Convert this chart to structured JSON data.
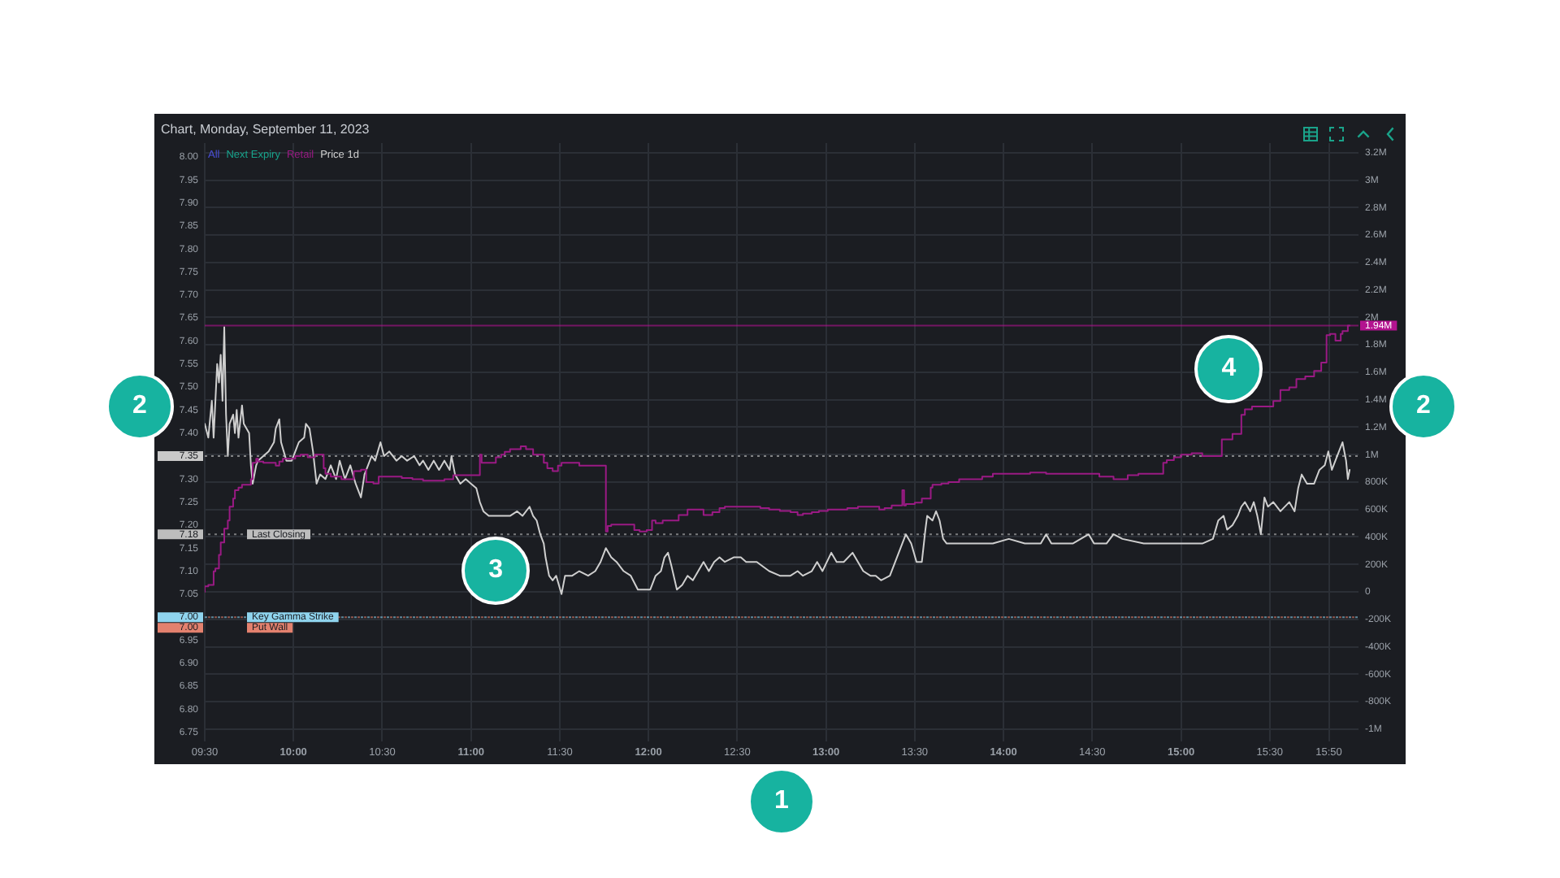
{
  "chart_data": {
    "type": "line",
    "title": "Chart, Monday, September 11, 2023",
    "series": [
      {
        "name": "All",
        "color": "#4a4fd8"
      },
      {
        "name": "Next Expiry",
        "color": "#17a38b"
      },
      {
        "name": "Retail",
        "type": "step",
        "axis": "y2",
        "color": "#9a1a84",
        "x": [
          9.5,
          9.52,
          9.55,
          9.56,
          9.58,
          9.59,
          9.61,
          9.63,
          9.64,
          9.66,
          9.67,
          9.69,
          9.71,
          9.73,
          9.76,
          9.77,
          9.79,
          9.8,
          9.83,
          9.86,
          9.9,
          9.92,
          9.94,
          9.97,
          10.01,
          10.04,
          10.08,
          10.12,
          10.14,
          10.17,
          10.18,
          10.21,
          10.27,
          10.34,
          10.38,
          10.41,
          10.45,
          10.48,
          10.55,
          10.61,
          10.67,
          10.73,
          10.85,
          10.9,
          10.93,
          11.05,
          11.06,
          11.1,
          11.14,
          11.17,
          11.19,
          11.22,
          11.28,
          11.31,
          11.35,
          11.38,
          11.41,
          11.43,
          11.46,
          11.49,
          11.51,
          11.53,
          11.61,
          11.66,
          11.76,
          11.77,
          11.79,
          11.83,
          11.92,
          11.95,
          11.99,
          12.02,
          12.04,
          12.08,
          12.13,
          12.17,
          12.22,
          12.27,
          12.31,
          12.36,
          12.4,
          12.43,
          12.48,
          12.63,
          12.68,
          12.74,
          12.8,
          12.84,
          12.87,
          12.92,
          12.96,
          13.01,
          13.06,
          13.12,
          13.18,
          13.24,
          13.3,
          13.33,
          13.37,
          13.43,
          13.44,
          13.45,
          13.5,
          13.54,
          13.59,
          13.6,
          13.65,
          13.69,
          13.75,
          13.82,
          13.88,
          13.94,
          13.98,
          14.15,
          14.24,
          14.33,
          14.54,
          14.62,
          14.7,
          14.76,
          14.85,
          14.9,
          14.92,
          14.96,
          15,
          15.06,
          15.12,
          15.18,
          15.23,
          15.24,
          15.29,
          15.34,
          15.36,
          15.4,
          15.46,
          15.52,
          15.56,
          15.61,
          15.65,
          15.7,
          15.75,
          15.79,
          15.82,
          15.84,
          15.87,
          15.9,
          15.91,
          15.94,
          15.95
        ],
        "values": [
          0,
          40000,
          50000,
          150000,
          170000,
          270000,
          360000,
          460000,
          520000,
          620000,
          680000,
          740000,
          760000,
          780000,
          780000,
          820000,
          940000,
          970000,
          950000,
          940000,
          940000,
          920000,
          950000,
          970000,
          970000,
          990000,
          1000000,
          980000,
          1000000,
          1000000,
          900000,
          860000,
          840000,
          820000,
          880000,
          890000,
          800000,
          790000,
          840000,
          840000,
          830000,
          820000,
          810000,
          820000,
          850000,
          850000,
          1000000,
          940000,
          940000,
          980000,
          1000000,
          1020000,
          1040000,
          1060000,
          1040000,
          1000000,
          1000000,
          940000,
          900000,
          880000,
          920000,
          940000,
          940000,
          920000,
          920000,
          440000,
          480000,
          490000,
          490000,
          450000,
          440000,
          450000,
          520000,
          500000,
          520000,
          520000,
          560000,
          600000,
          600000,
          560000,
          580000,
          610000,
          620000,
          620000,
          610000,
          600000,
          590000,
          580000,
          560000,
          570000,
          580000,
          590000,
          600000,
          600000,
          610000,
          620000,
          620000,
          600000,
          610000,
          630000,
          740000,
          630000,
          640000,
          650000,
          680000,
          760000,
          780000,
          790000,
          800000,
          820000,
          820000,
          840000,
          860000,
          860000,
          870000,
          860000,
          860000,
          840000,
          820000,
          850000,
          860000,
          860000,
          940000,
          960000,
          980000,
          1000000,
          1010000,
          990000,
          990000,
          1110000,
          1110000,
          1150000,
          1290000,
          1330000,
          1350000,
          1350000,
          1390000,
          1470000,
          1490000,
          1550000,
          1570000,
          1610000,
          1670000,
          1870000,
          1880000,
          1830000,
          1880000,
          1900000,
          1940000
        ]
      },
      {
        "name": "Price 1d",
        "color": "#cfcfcf",
        "x": [
          9.5,
          9.52,
          9.53,
          9.54,
          9.55,
          9.57,
          9.58,
          9.59,
          9.6,
          9.61,
          9.62,
          9.63,
          9.64,
          9.66,
          9.67,
          9.68,
          9.69,
          9.71,
          9.72,
          9.75,
          9.76,
          9.77,
          9.79,
          9.8,
          9.83,
          9.86,
          9.89,
          9.9,
          9.92,
          9.93,
          9.96,
          9.99,
          10.01,
          10.03,
          10.06,
          10.07,
          10.09,
          10.11,
          10.13,
          10.15,
          10.18,
          10.21,
          10.24,
          10.26,
          10.29,
          10.32,
          10.35,
          10.38,
          10.4,
          10.42,
          10.44,
          10.46,
          10.49,
          10.51,
          10.54,
          10.58,
          10.61,
          10.64,
          10.68,
          10.71,
          10.73,
          10.76,
          10.79,
          10.82,
          10.85,
          10.88,
          10.89,
          10.91,
          10.94,
          10.97,
          11,
          11.03,
          11.05,
          11.07,
          11.1,
          11.14,
          11.17,
          11.22,
          11.26,
          11.29,
          11.33,
          11.35,
          11.37,
          11.39,
          11.41,
          11.42,
          11.44,
          11.46,
          11.48,
          11.51,
          11.53,
          11.57,
          11.61,
          11.66,
          11.7,
          11.73,
          11.76,
          11.79,
          11.82,
          11.86,
          11.9,
          11.94,
          11.98,
          12.01,
          12.04,
          12.07,
          12.09,
          12.11,
          12.13,
          12.16,
          12.19,
          12.22,
          12.25,
          12.28,
          12.31,
          12.34,
          12.37,
          12.4,
          12.43,
          12.48,
          12.52,
          12.55,
          12.61,
          12.68,
          12.74,
          12.8,
          12.84,
          12.87,
          12.92,
          12.95,
          12.98,
          13.03,
          13.06,
          13.1,
          13.15,
          13.18,
          13.21,
          13.25,
          13.28,
          13.31,
          13.36,
          13.39,
          13.42,
          13.45,
          13.48,
          13.51,
          13.54,
          13.56,
          13.57,
          13.6,
          13.62,
          13.64,
          13.66,
          13.68,
          13.75,
          13.85,
          13.94,
          14.03,
          14.12,
          14.21,
          14.24,
          14.27,
          14.39,
          14.48,
          14.51,
          14.58,
          14.62,
          14.67,
          14.79,
          14.91,
          15.03,
          15.12,
          15.18,
          15.21,
          15.24,
          15.26,
          15.29,
          15.32,
          15.34,
          15.36,
          15.39,
          15.41,
          15.43,
          15.45,
          15.47,
          15.49,
          15.52,
          15.56,
          15.61,
          15.64,
          15.66,
          15.68,
          15.71,
          15.75,
          15.78,
          15.81,
          15.83,
          15.85,
          15.88,
          15.91,
          15.93,
          15.94,
          15.95
        ],
        "values": [
          7.42,
          7.39,
          7.43,
          7.47,
          7.39,
          7.55,
          7.51,
          7.57,
          7.47,
          7.63,
          7.44,
          7.35,
          7.42,
          7.44,
          7.4,
          7.45,
          7.39,
          7.46,
          7.42,
          7.4,
          7.33,
          7.29,
          7.33,
          7.34,
          7.35,
          7.36,
          7.38,
          7.41,
          7.43,
          7.38,
          7.34,
          7.34,
          7.36,
          7.38,
          7.39,
          7.42,
          7.41,
          7.36,
          7.29,
          7.31,
          7.3,
          7.33,
          7.3,
          7.34,
          7.3,
          7.33,
          7.29,
          7.26,
          7.31,
          7.33,
          7.35,
          7.34,
          7.38,
          7.35,
          7.36,
          7.34,
          7.35,
          7.34,
          7.35,
          7.33,
          7.34,
          7.32,
          7.34,
          7.32,
          7.34,
          7.32,
          7.35,
          7.31,
          7.29,
          7.3,
          7.29,
          7.28,
          7.25,
          7.23,
          7.22,
          7.22,
          7.22,
          7.22,
          7.23,
          7.22,
          7.24,
          7.22,
          7.21,
          7.18,
          7.16,
          7.13,
          7.09,
          7.08,
          7.09,
          7.05,
          7.09,
          7.09,
          7.1,
          7.09,
          7.1,
          7.12,
          7.15,
          7.13,
          7.12,
          7.1,
          7.09,
          7.06,
          7.06,
          7.06,
          7.09,
          7.1,
          7.13,
          7.14,
          7.11,
          7.06,
          7.07,
          7.09,
          7.08,
          7.1,
          7.12,
          7.1,
          7.12,
          7.13,
          7.12,
          7.13,
          7.13,
          7.12,
          7.12,
          7.1,
          7.09,
          7.09,
          7.1,
          7.09,
          7.1,
          7.12,
          7.1,
          7.14,
          7.12,
          7.12,
          7.14,
          7.12,
          7.1,
          7.09,
          7.09,
          7.08,
          7.09,
          7.12,
          7.15,
          7.18,
          7.16,
          7.12,
          7.12,
          7.19,
          7.22,
          7.21,
          7.23,
          7.21,
          7.17,
          7.16,
          7.16,
          7.16,
          7.16,
          7.17,
          7.16,
          7.16,
          7.18,
          7.16,
          7.16,
          7.18,
          7.16,
          7.16,
          7.18,
          7.17,
          7.16,
          7.16,
          7.16,
          7.16,
          7.17,
          7.21,
          7.22,
          7.19,
          7.2,
          7.22,
          7.24,
          7.25,
          7.23,
          7.25,
          7.22,
          7.18,
          7.26,
          7.24,
          7.25,
          7.23,
          7.25,
          7.23,
          7.28,
          7.31,
          7.29,
          7.29,
          7.32,
          7.33,
          7.36,
          7.32,
          7.35,
          7.38,
          7.34,
          7.3,
          7.32
        ]
      }
    ],
    "xlim": [
      9.5,
      16
    ],
    "xticks": [
      {
        "value": 9.5,
        "label": "09:30"
      },
      {
        "value": 10,
        "label": "10:00"
      },
      {
        "value": 10.5,
        "label": "10:30"
      },
      {
        "value": 11,
        "label": "11:00"
      },
      {
        "value": 11.5,
        "label": "11:30"
      },
      {
        "value": 12,
        "label": "12:00"
      },
      {
        "value": 12.5,
        "label": "12:30"
      },
      {
        "value": 13,
        "label": "13:00"
      },
      {
        "value": 13.5,
        "label": "13:30"
      },
      {
        "value": 14,
        "label": "14:00"
      },
      {
        "value": 14.5,
        "label": "14:30"
      },
      {
        "value": 15,
        "label": "15:00"
      },
      {
        "value": 15.5,
        "label": "15:30"
      },
      {
        "value": 15.833,
        "label": "15:50"
      }
    ],
    "ylim": [
      6.73,
      8.03
    ],
    "yticks": [
      6.75,
      {
        "value": 6.8,
        "label": "6.80"
      },
      6.85,
      {
        "value": 6.9,
        "label": "6.90"
      },
      6.95,
      {
        "value": 7,
        "label": "7.00"
      },
      7.05,
      {
        "value": 7.1,
        "label": "7.10"
      },
      7.15,
      7.18,
      {
        "value": 7.2,
        "label": "7.20"
      },
      7.25,
      {
        "value": 7.3,
        "label": "7.30"
      },
      7.35,
      {
        "value": 7.4,
        "label": "7.40"
      },
      7.45,
      {
        "value": 7.5,
        "label": "7.50"
      },
      7.55,
      {
        "value": 7.6,
        "label": "7.60"
      },
      7.65,
      {
        "value": 7.7,
        "label": "7.70"
      },
      7.75,
      {
        "value": 7.8,
        "label": "7.80"
      },
      7.85,
      {
        "value": 7.9,
        "label": "7.90"
      },
      7.95,
      {
        "value": 8,
        "label": "8.00"
      }
    ],
    "y2lim": [
      -1090000,
      3270000
    ],
    "y2ticks": [
      {
        "value": -1000000,
        "label": "-1M"
      },
      {
        "value": -800000,
        "label": "-800K"
      },
      {
        "value": -600000,
        "label": "-600K"
      },
      {
        "value": -400000,
        "label": "-400K"
      },
      {
        "value": -200000,
        "label": "-200K"
      },
      0,
      {
        "value": 200000,
        "label": "200K"
      },
      {
        "value": 400000,
        "label": "400K"
      },
      {
        "value": 600000,
        "label": "600K"
      },
      {
        "value": 800000,
        "label": "800K"
      },
      {
        "value": 1000000,
        "label": "1M"
      },
      {
        "value": 1200000,
        "label": "1.2M"
      },
      {
        "value": 1400000,
        "label": "1.4M"
      },
      {
        "value": 1600000,
        "label": "1.6M"
      },
      {
        "value": 1800000,
        "label": "1.8M"
      },
      {
        "value": 2000000,
        "label": "2M"
      },
      {
        "value": 2200000,
        "label": "2.2M"
      },
      {
        "value": 2400000,
        "label": "2.4M"
      },
      {
        "value": 2600000,
        "label": "2.6M"
      },
      {
        "value": 2800000,
        "label": "2.8M"
      },
      {
        "value": 3000000,
        "label": "3M"
      },
      {
        "value": 3200000,
        "label": "3.2M"
      }
    ],
    "ref_lines": [
      {
        "axis": "y",
        "value": 7.35,
        "color": "#c9c9c9",
        "line_style": "dotted"
      },
      {
        "axis": "y",
        "value": 7.18,
        "label": "Last Closing",
        "color": "#bdbdbd",
        "line_style": "dotted"
      },
      {
        "axis": "y",
        "value": 7,
        "label": "Key Gamma Strike",
        "color": "#8fd4ee",
        "line_style": "dotted"
      },
      {
        "axis": "y",
        "value": 7,
        "label": "Put Wall",
        "color": "#e3816e",
        "line_style": "dotted"
      },
      {
        "axis": "y2",
        "value": 1940000,
        "label": "1.94M",
        "color": "#b3138f",
        "line_style": "solid"
      }
    ],
    "annotations": [
      "1",
      "2",
      "2",
      {
        "text": "3",
        "x": 11.14,
        "y": 7.1
      },
      {
        "text": "4",
        "x": 15.27,
        "y": 7.54
      }
    ],
    "grid": true,
    "legend": "top left"
  }
}
